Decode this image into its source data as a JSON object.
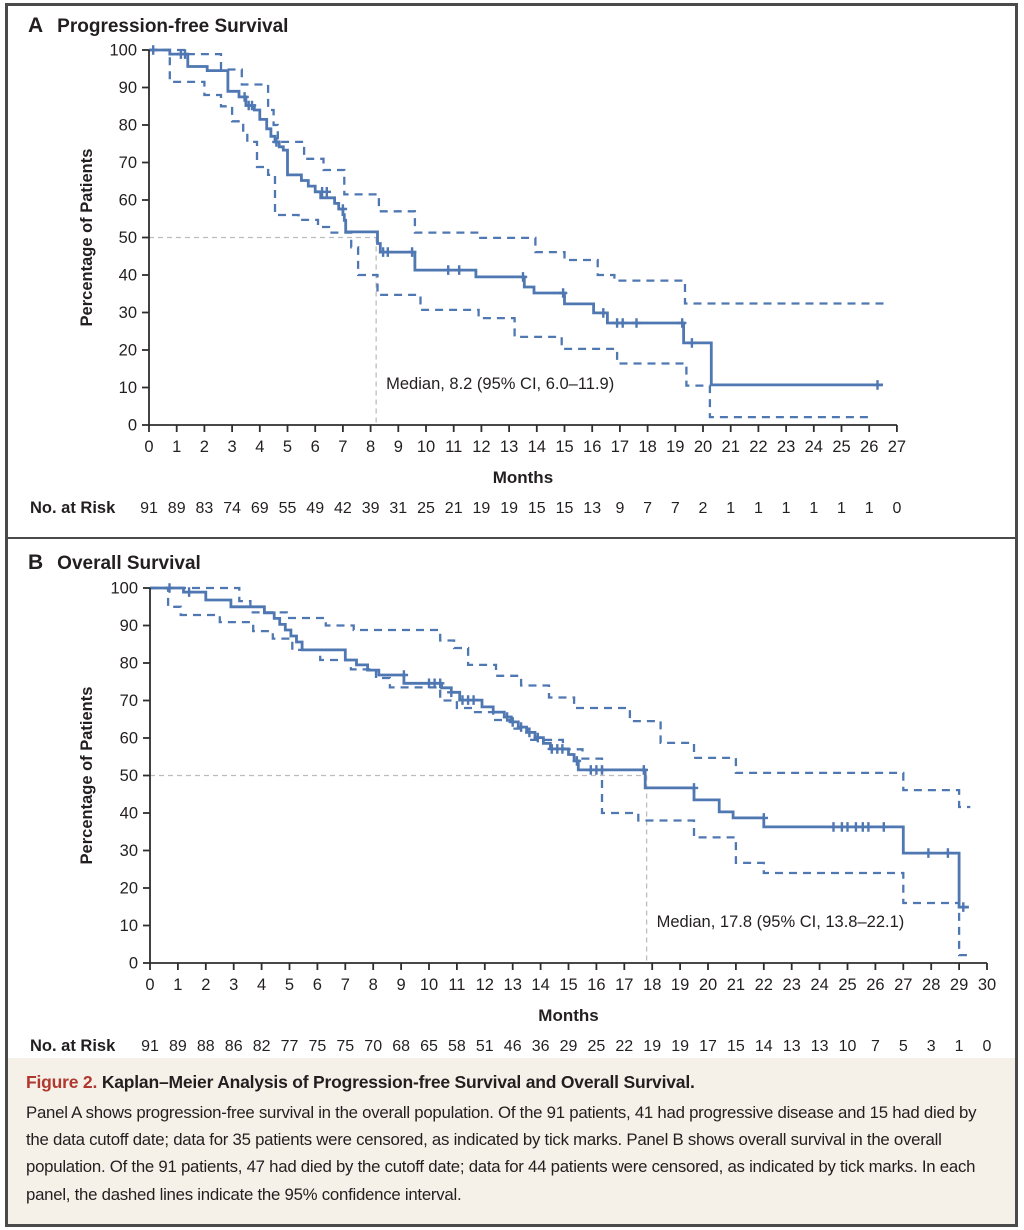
{
  "figure": {
    "caption_label": "Figure 2.",
    "caption_title": "Kaplan–Meier Analysis of Progression-free Survival and Overall Survival.",
    "caption_body": "Panel A shows progression-free survival in the overall population. Of the 91 patients, 41 had progressive disease and 15 had died by the data cutoff date; data for 35 patients were censored, as indicated by tick marks. Panel B shows overall survival in the overall population. Of the 91 patients, 47 had died by the cutoff date; data for 44 patients were censored, as indicated by tick marks. In each panel, the dashed lines indicate the 95% confidence interval.",
    "colors": {
      "curve_blue": "#4f77b2",
      "axis_dark": "#2e2e2e",
      "median_gray": "#bcbcbc",
      "caption_red": "#b0382e",
      "caption_bg": "#f5f1e8",
      "border_gray": "#4a4a4a"
    }
  },
  "chart_data": [
    {
      "type": "line",
      "panel_label": "A",
      "title": "Progression-free Survival",
      "xlabel": "Months",
      "ylabel": "Percentage of Patients",
      "xlim": [
        0,
        27
      ],
      "ylim": [
        0,
        100
      ],
      "xticks": [
        0,
        1,
        2,
        3,
        4,
        5,
        6,
        7,
        8,
        9,
        10,
        11,
        12,
        13,
        14,
        15,
        16,
        17,
        18,
        19,
        20,
        21,
        22,
        23,
        24,
        25,
        26,
        27
      ],
      "yticks": [
        0,
        10,
        20,
        30,
        40,
        50,
        60,
        70,
        80,
        90,
        100
      ],
      "grid": false,
      "median_label": "Median, 8.2 (95% CI, 6.0–11.9)",
      "median_x": 8.2,
      "median_y": 50,
      "risk_label": "No. at Risk",
      "risk_numbers": [
        91,
        89,
        83,
        74,
        69,
        55,
        49,
        42,
        39,
        31,
        25,
        21,
        19,
        19,
        15,
        15,
        13,
        9,
        7,
        7,
        2,
        1,
        1,
        1,
        1,
        1,
        1,
        0
      ],
      "survival_steps": [
        [
          0,
          100
        ],
        [
          0.75,
          98.9
        ],
        [
          1.4,
          95.6
        ],
        [
          2.1,
          94.5
        ],
        [
          2.85,
          89.0
        ],
        [
          3.25,
          87.5
        ],
        [
          3.5,
          85.2
        ],
        [
          3.8,
          84.0
        ],
        [
          4.0,
          81.5
        ],
        [
          4.25,
          79.0
        ],
        [
          4.4,
          77.0
        ],
        [
          4.55,
          75.5
        ],
        [
          4.7,
          74.2
        ],
        [
          4.85,
          73.3
        ],
        [
          5.0,
          66.7
        ],
        [
          5.5,
          65.2
        ],
        [
          5.75,
          63.7
        ],
        [
          6.0,
          62.2
        ],
        [
          6.2,
          60.6
        ],
        [
          6.7,
          59.1
        ],
        [
          6.85,
          57.6
        ],
        [
          7.0,
          56.1
        ],
        [
          7.05,
          54.6
        ],
        [
          7.1,
          51.5
        ],
        [
          8.25,
          48.4
        ],
        [
          8.35,
          46.1
        ],
        [
          9.6,
          41.3
        ],
        [
          11.8,
          39.5
        ],
        [
          13.55,
          36.8
        ],
        [
          13.9,
          35.2
        ],
        [
          15.0,
          32.3
        ],
        [
          16.05,
          29.9
        ],
        [
          16.55,
          27.2
        ],
        [
          19.3,
          21.9
        ],
        [
          20.3,
          10.7
        ]
      ],
      "curve_end": 26.5,
      "ci_upper": [
        [
          0,
          100
        ],
        [
          1.4,
          98.9
        ],
        [
          2.6,
          94.8
        ],
        [
          3.35,
          90.8
        ],
        [
          4.3,
          84.0
        ],
        [
          4.5,
          80.0
        ],
        [
          4.65,
          75.5
        ],
        [
          5.6,
          71.0
        ],
        [
          6.3,
          68.0
        ],
        [
          7.05,
          61.5
        ],
        [
          8.3,
          57.0
        ],
        [
          9.6,
          51.3
        ],
        [
          11.85,
          49.9
        ],
        [
          13.95,
          46.1
        ],
        [
          15.0,
          44.0
        ],
        [
          16.2,
          40.0
        ],
        [
          16.8,
          38.5
        ],
        [
          19.35,
          32.4
        ]
      ],
      "ci_upper_end": 26.6,
      "ci_lower": [
        [
          0,
          100
        ],
        [
          0.75,
          91.5
        ],
        [
          2.0,
          88.0
        ],
        [
          2.6,
          85.0
        ],
        [
          3.0,
          81.0
        ],
        [
          3.4,
          77.9
        ],
        [
          3.55,
          75.5
        ],
        [
          3.9,
          68.8
        ],
        [
          4.3,
          66.7
        ],
        [
          4.55,
          56.0
        ],
        [
          5.4,
          54.7
        ],
        [
          6.1,
          52.8
        ],
        [
          6.5,
          51.3
        ],
        [
          7.3,
          47.4
        ],
        [
          7.55,
          40.0
        ],
        [
          8.25,
          34.7
        ],
        [
          9.8,
          30.7
        ],
        [
          11.9,
          28.5
        ],
        [
          13.2,
          23.5
        ],
        [
          14.9,
          20.3
        ],
        [
          16.9,
          16.4
        ],
        [
          19.4,
          10.5
        ],
        [
          20.25,
          2.1
        ]
      ],
      "ci_lower_end": 26.1,
      "censor_marks": [
        [
          0.15,
          100
        ],
        [
          1.15,
          98.9
        ],
        [
          1.3,
          98.9
        ],
        [
          3.45,
          87.5
        ],
        [
          3.6,
          85.2
        ],
        [
          3.72,
          85.2
        ],
        [
          4.6,
          75.5
        ],
        [
          6.25,
          62.2
        ],
        [
          6.42,
          62.2
        ],
        [
          7.0,
          57.6
        ],
        [
          8.45,
          46.1
        ],
        [
          8.62,
          46.1
        ],
        [
          9.5,
          46.1
        ],
        [
          10.8,
          41.3
        ],
        [
          11.2,
          41.3
        ],
        [
          13.5,
          39.5
        ],
        [
          14.95,
          35.2
        ],
        [
          16.4,
          29.9
        ],
        [
          16.9,
          27.2
        ],
        [
          17.1,
          27.2
        ],
        [
          17.6,
          27.2
        ],
        [
          19.25,
          27.2
        ],
        [
          19.6,
          21.9
        ],
        [
          26.3,
          10.7
        ]
      ]
    },
    {
      "type": "line",
      "panel_label": "B",
      "title": "Overall Survival",
      "xlabel": "Months",
      "ylabel": "Percentage of Patients",
      "xlim": [
        0,
        30
      ],
      "ylim": [
        0,
        100
      ],
      "xticks": [
        0,
        1,
        2,
        3,
        4,
        5,
        6,
        7,
        8,
        9,
        10,
        11,
        12,
        13,
        14,
        15,
        16,
        17,
        18,
        19,
        20,
        21,
        22,
        23,
        24,
        25,
        26,
        27,
        28,
        29,
        30
      ],
      "yticks": [
        0,
        10,
        20,
        30,
        40,
        50,
        60,
        70,
        80,
        90,
        100
      ],
      "grid": false,
      "median_label": "Median, 17.8 (95% CI, 13.8–22.1)",
      "median_x": 17.8,
      "median_y": 50,
      "risk_label": "No. at Risk",
      "risk_numbers": [
        91,
        89,
        88,
        86,
        82,
        77,
        75,
        75,
        70,
        68,
        65,
        58,
        51,
        46,
        36,
        29,
        25,
        22,
        19,
        19,
        17,
        15,
        14,
        13,
        13,
        10,
        7,
        5,
        3,
        1,
        0
      ],
      "survival_steps": [
        [
          0,
          100
        ],
        [
          1.2,
          98.9
        ],
        [
          2.0,
          96.8
        ],
        [
          2.9,
          95.0
        ],
        [
          4.1,
          93.4
        ],
        [
          4.45,
          91.9
        ],
        [
          4.65,
          90.3
        ],
        [
          4.85,
          88.8
        ],
        [
          5.05,
          87.2
        ],
        [
          5.25,
          85.6
        ],
        [
          5.45,
          83.5
        ],
        [
          7.0,
          80.8
        ],
        [
          7.4,
          79.5
        ],
        [
          7.8,
          78.1
        ],
        [
          8.2,
          76.8
        ],
        [
          9.1,
          74.6
        ],
        [
          10.45,
          73.4
        ],
        [
          10.8,
          72.2
        ],
        [
          11.1,
          70.1
        ],
        [
          11.9,
          68.3
        ],
        [
          12.3,
          66.9
        ],
        [
          12.7,
          65.6
        ],
        [
          12.95,
          64.3
        ],
        [
          13.2,
          62.9
        ],
        [
          13.5,
          61.5
        ],
        [
          13.8,
          60.1
        ],
        [
          14.1,
          58.6
        ],
        [
          14.35,
          57.1
        ],
        [
          15.0,
          55.6
        ],
        [
          15.2,
          53.9
        ],
        [
          15.35,
          51.5
        ],
        [
          17.75,
          46.7
        ],
        [
          19.5,
          43.5
        ],
        [
          20.4,
          40.3
        ],
        [
          20.9,
          38.7
        ],
        [
          22.0,
          36.3
        ],
        [
          27.0,
          29.3
        ],
        [
          29.0,
          14.9
        ]
      ],
      "curve_end": 29.35,
      "ci_upper": [
        [
          0,
          100
        ],
        [
          3.2,
          96.5
        ],
        [
          3.6,
          93.5
        ],
        [
          4.9,
          92.0
        ],
        [
          6.3,
          90.0
        ],
        [
          7.3,
          88.8
        ],
        [
          10.4,
          86.0
        ],
        [
          10.9,
          84.0
        ],
        [
          11.4,
          79.5
        ],
        [
          12.4,
          76.6
        ],
        [
          13.3,
          74.0
        ],
        [
          14.3,
          70.8
        ],
        [
          15.2,
          68.0
        ],
        [
          17.2,
          64.5
        ],
        [
          18.3,
          58.7
        ],
        [
          19.5,
          54.7
        ],
        [
          21.0,
          50.7
        ],
        [
          27.0,
          46.1
        ],
        [
          29.0,
          41.6
        ]
      ],
      "ci_upper_end": 29.4,
      "ci_lower": [
        [
          0,
          100
        ],
        [
          0.65,
          95.0
        ],
        [
          1.1,
          92.8
        ],
        [
          2.5,
          90.9
        ],
        [
          3.7,
          88.5
        ],
        [
          4.4,
          86.5
        ],
        [
          5.1,
          83.5
        ],
        [
          6.1,
          80.8
        ],
        [
          7.2,
          78.3
        ],
        [
          8.1,
          76.0
        ],
        [
          8.6,
          73.5
        ],
        [
          10.4,
          70.0
        ],
        [
          11.0,
          68.0
        ],
        [
          11.6,
          66.9
        ],
        [
          12.3,
          64.8
        ],
        [
          13.0,
          62.5
        ],
        [
          13.6,
          59.5
        ],
        [
          14.8,
          57.0
        ],
        [
          15.5,
          54.5
        ],
        [
          16.2,
          40.0
        ],
        [
          17.5,
          38.0
        ],
        [
          19.5,
          33.5
        ],
        [
          21.0,
          26.7
        ],
        [
          22.0,
          24.0
        ],
        [
          27.0,
          16.0
        ],
        [
          29.0,
          2.1
        ]
      ],
      "ci_lower_end": 29.3,
      "censor_marks": [
        [
          0.7,
          100
        ],
        [
          1.4,
          98.9
        ],
        [
          9.1,
          76.8
        ],
        [
          10.0,
          74.6
        ],
        [
          10.2,
          74.6
        ],
        [
          10.4,
          74.6
        ],
        [
          10.8,
          72.2
        ],
        [
          11.2,
          70.1
        ],
        [
          11.4,
          70.1
        ],
        [
          11.6,
          70.1
        ],
        [
          12.8,
          65.6
        ],
        [
          13.0,
          64.3
        ],
        [
          13.3,
          62.9
        ],
        [
          13.6,
          61.5
        ],
        [
          13.9,
          60.1
        ],
        [
          14.4,
          57.1
        ],
        [
          14.6,
          57.1
        ],
        [
          14.78,
          57.1
        ],
        [
          15.3,
          53.9
        ],
        [
          15.8,
          51.5
        ],
        [
          16.0,
          51.5
        ],
        [
          16.2,
          51.5
        ],
        [
          17.7,
          51.5
        ],
        [
          19.5,
          46.7
        ],
        [
          22.0,
          38.7
        ],
        [
          24.5,
          36.3
        ],
        [
          24.8,
          36.3
        ],
        [
          25.0,
          36.3
        ],
        [
          25.3,
          36.3
        ],
        [
          25.55,
          36.3
        ],
        [
          25.75,
          36.3
        ],
        [
          26.3,
          36.3
        ],
        [
          27.9,
          29.3
        ],
        [
          28.6,
          29.3
        ],
        [
          29.15,
          14.9
        ]
      ]
    }
  ]
}
